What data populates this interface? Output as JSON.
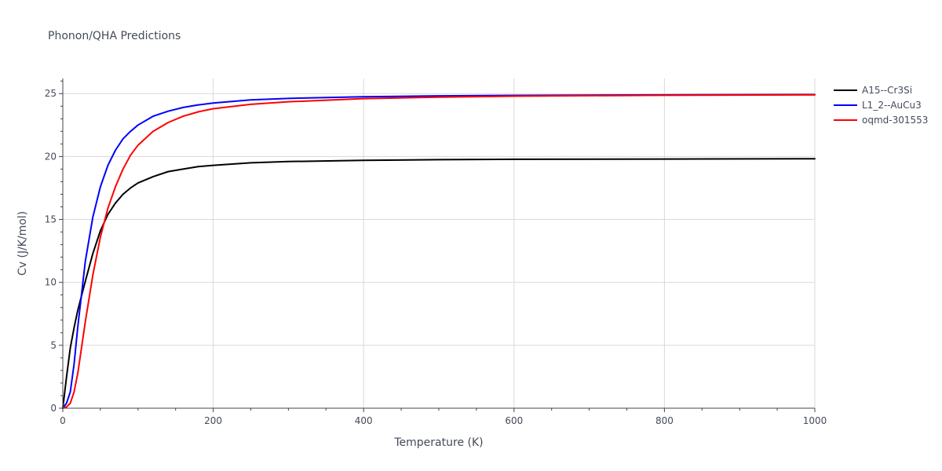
{
  "chart_data": {
    "type": "line",
    "title": "Phonon/QHA Predictions",
    "xlabel": "Temperature (K)",
    "ylabel": "Cv (J/K/mol)",
    "xlim": [
      0,
      1000
    ],
    "ylim": [
      0,
      26.2
    ],
    "x_ticks": [
      0,
      200,
      400,
      600,
      800,
      1000
    ],
    "y_ticks": [
      0,
      5,
      10,
      15,
      20,
      25
    ],
    "x_tick_labels": [
      "0",
      "200",
      "400",
      "600",
      "800",
      "1000"
    ],
    "y_tick_labels": [
      "0",
      "5",
      "10",
      "15",
      "20",
      "25"
    ],
    "grid": true,
    "legend_position": "top-right",
    "series": [
      {
        "name": "A15--Cr3Si",
        "color": "#000000",
        "x": [
          0,
          5,
          10,
          15,
          20,
          30,
          40,
          50,
          60,
          70,
          80,
          90,
          100,
          120,
          140,
          160,
          180,
          200,
          250,
          300,
          400,
          500,
          600,
          800,
          1000
        ],
        "y": [
          0,
          2.5,
          4.8,
          6.4,
          7.8,
          10.1,
          12.3,
          14.1,
          15.4,
          16.3,
          17.0,
          17.5,
          17.9,
          18.4,
          18.8,
          19.0,
          19.2,
          19.3,
          19.5,
          19.6,
          19.7,
          19.75,
          19.78,
          19.8,
          19.82
        ]
      },
      {
        "name": "L1_2--AuCu3",
        "color": "#0000ff",
        "x": [
          0,
          5,
          10,
          15,
          20,
          30,
          40,
          50,
          60,
          70,
          80,
          90,
          100,
          120,
          140,
          160,
          180,
          200,
          250,
          300,
          400,
          500,
          600,
          800,
          1000
        ],
        "y": [
          0,
          0.4,
          1.3,
          3.5,
          6.5,
          11.7,
          15.2,
          17.6,
          19.3,
          20.5,
          21.4,
          22.0,
          22.5,
          23.2,
          23.6,
          23.9,
          24.1,
          24.25,
          24.5,
          24.62,
          24.75,
          24.82,
          24.86,
          24.9,
          24.92
        ]
      },
      {
        "name": "oqmd-301553",
        "color": "#ff0000",
        "x": [
          0,
          5,
          10,
          15,
          20,
          30,
          40,
          50,
          60,
          70,
          80,
          90,
          100,
          120,
          140,
          160,
          180,
          200,
          250,
          300,
          400,
          500,
          600,
          800,
          1000
        ],
        "y": [
          0,
          0.1,
          0.4,
          1.3,
          2.8,
          6.9,
          10.6,
          13.6,
          15.9,
          17.6,
          19.0,
          20.1,
          20.9,
          22.0,
          22.7,
          23.2,
          23.55,
          23.8,
          24.15,
          24.35,
          24.6,
          24.72,
          24.8,
          24.87,
          24.9
        ]
      }
    ]
  }
}
